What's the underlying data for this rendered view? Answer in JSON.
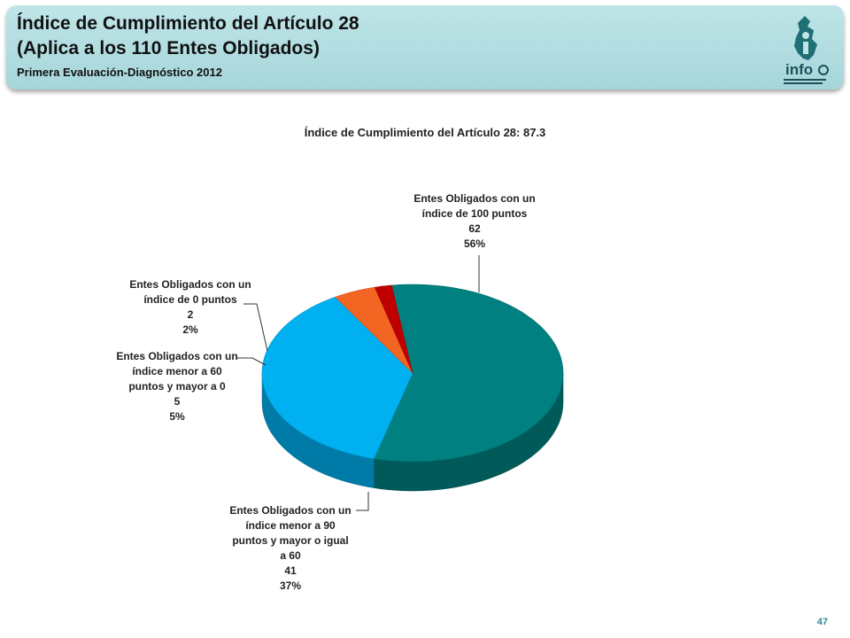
{
  "header": {
    "title_line1": "Índice de Cumplimiento del Artículo 28",
    "title_line2": "(Aplica a los 110 Entes Obligados)",
    "subtitle": "Primera Evaluación-Diagnóstico 2012",
    "logo_text": "info"
  },
  "colors": {
    "header_bg": "#a6d6da",
    "slice_100": "#008080",
    "slice_90": "#00b0f0",
    "slice_60": "#f26522",
    "slice_0": "#c00000"
  },
  "chart_data": {
    "type": "pie",
    "title": "Índice de Cumplimiento del Artículo 28: 87.3",
    "slices": [
      {
        "label_lines": [
          "Entes Obligados con un",
          "índice de 100  puntos"
        ],
        "value": 62,
        "percent": "56%",
        "color": "#008080"
      },
      {
        "label_lines": [
          "Entes Obligados con un",
          "índice menor a 90",
          "puntos y mayor o igual",
          "a 60"
        ],
        "value": 41,
        "percent": "37%",
        "color": "#00b0f0"
      },
      {
        "label_lines": [
          "Entes Obligados con un",
          "índice menor a 60",
          "puntos y mayor a 0"
        ],
        "value": 5,
        "percent": "5%",
        "color": "#f26522"
      },
      {
        "label_lines": [
          "Entes Obligados con un",
          "índice de 0 puntos"
        ],
        "value": 2,
        "percent": "2%",
        "color": "#c00000"
      }
    ]
  },
  "footer": {
    "page_number": "47"
  }
}
